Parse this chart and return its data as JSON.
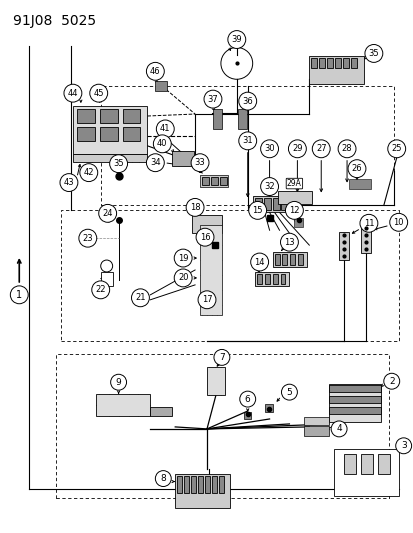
{
  "title": "91J08  5025",
  "bg_color": "#ffffff",
  "fg_color": "#000000",
  "fig_width": 4.14,
  "fig_height": 5.33,
  "dpi": 100
}
